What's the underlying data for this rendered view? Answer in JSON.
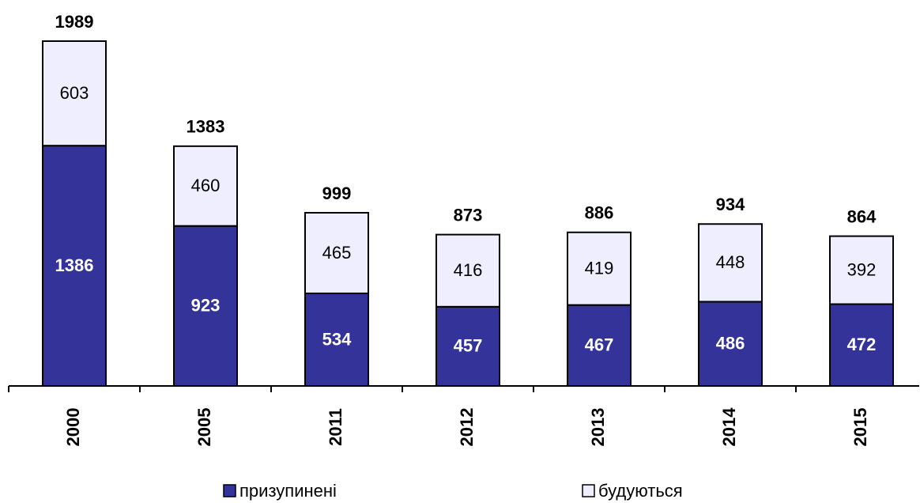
{
  "chart_data": {
    "type": "stacked_bar",
    "categories": [
      "2000",
      "2005",
      "2011",
      "2012",
      "2013",
      "2014",
      "2015"
    ],
    "series": [
      {
        "name": "призупинені",
        "color": "#333399",
        "values": [
          1386,
          923,
          534,
          457,
          467,
          486,
          472
        ]
      },
      {
        "name": "будуються",
        "color": "#eeeeff",
        "values": [
          603,
          460,
          465,
          416,
          419,
          448,
          392
        ]
      }
    ],
    "totals": [
      1989,
      1383,
      999,
      873,
      886,
      934,
      864
    ],
    "legend": "bottom"
  }
}
